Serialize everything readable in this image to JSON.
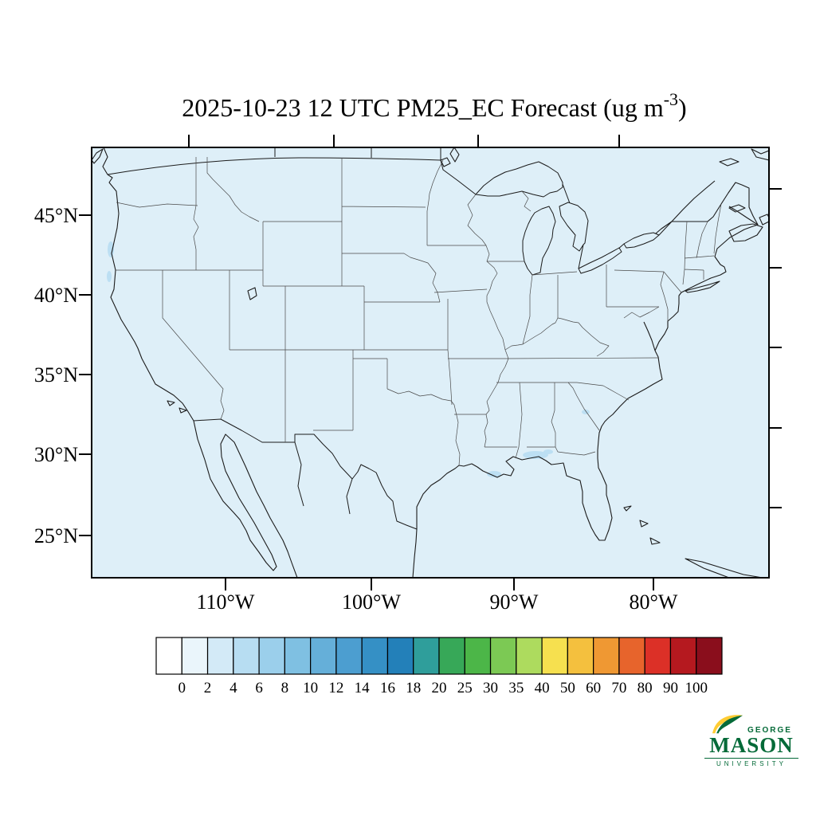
{
  "title": {
    "prefix": "2025-10-23 12 UTC PM25_EC Forecast (ug m",
    "superscript": "-3",
    "suffix": ")"
  },
  "axes": {
    "lat_labels": [
      "45°N",
      "40°N",
      "35°N",
      "30°N",
      "25°N"
    ],
    "lon_labels": [
      "110°W",
      "100°W",
      "90°W",
      "80°W"
    ]
  },
  "colorbar": {
    "labels": [
      "0",
      "2",
      "4",
      "6",
      "8",
      "10",
      "12",
      "14",
      "16",
      "18",
      "20",
      "25",
      "30",
      "35",
      "40",
      "50",
      "60",
      "70",
      "80",
      "90",
      "100"
    ],
    "colors": [
      "#FFFFFF",
      "#EAF5FB",
      "#D3EAF7",
      "#B7DDF2",
      "#9BCFEB",
      "#7FC0E2",
      "#65AFD9",
      "#4C9ED0",
      "#3590C5",
      "#2380B9",
      "#2F9E9B",
      "#37A858",
      "#4CB648",
      "#7CC954",
      "#ADDB5E",
      "#F6E04F",
      "#F4C03E",
      "#EF9833",
      "#E7642C",
      "#DC3027",
      "#B5191F",
      "#8A0E1C"
    ]
  },
  "logo": {
    "top": "GEORGE",
    "middle": "MASON",
    "bottom": "UNIVERSITY"
  },
  "chart_data": {
    "type": "heatmap",
    "title": "2025-10-23 12 UTC PM25_EC Forecast (ug m-3)",
    "variable": "PM25_EC",
    "units": "ug m-3",
    "forecast_valid": "2025-10-23 12 UTC",
    "region": "Contiguous United States with portions of Canada and Mexico",
    "projection_hint": "Lambert-conformal style CONUS map with state and national borders",
    "x_ticks": [
      "110°W",
      "100°W",
      "90°W",
      "80°W"
    ],
    "y_ticks": [
      "45°N",
      "40°N",
      "35°N",
      "30°N",
      "25°N"
    ],
    "colorbar_levels": [
      0,
      2,
      4,
      6,
      8,
      10,
      12,
      14,
      16,
      18,
      20,
      25,
      30,
      35,
      40,
      50,
      60,
      70,
      80,
      90,
      100
    ],
    "colorbar_orientation": "horizontal",
    "field_summary": "PM25_EC concentrations are near zero (below 2 ug m-3) over virtually the entire domain; faint patches of roughly 1-3 ug m-3 appear over central Alabama, the Louisiana Gulf coast, coastal Oregon / northern California, and central Georgia.",
    "legend_position": "bottom"
  }
}
